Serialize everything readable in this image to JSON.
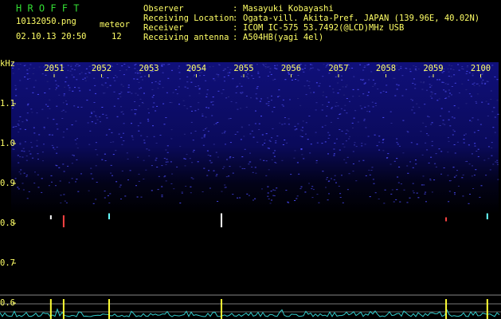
{
  "chart_data": {
    "type": "spectrogram",
    "title": "H R O F F T",
    "file": "10132050.png",
    "date": "02.10.13 20:50",
    "meteor_label": "meteor",
    "meteor_count": 12,
    "info": [
      {
        "label": "Observer",
        "value": "Masayuki Kobayashi"
      },
      {
        "label": "Receiving Location",
        "value": "Ogata-vill. Akita-Pref. JAPAN (139.96E, 40.02N)"
      },
      {
        "label": "Receiver",
        "value": "ICOM IC-575 53.7492(@LCD)MHz USB"
      },
      {
        "label": "Receiving antenna",
        "value": "A504HB(yagi 4el)"
      }
    ],
    "separator": ":",
    "y_label": "kHz",
    "categories": [
      "2051",
      "2052",
      "2053",
      "2054",
      "2055",
      "2056",
      "2057",
      "2058",
      "2059",
      "2100"
    ],
    "ylim": [
      0.56,
      1.2
    ],
    "yticks": [
      0.6,
      0.7,
      0.8,
      0.9,
      {
        "value": 1,
        "label": "1.0"
      },
      1.1
    ],
    "echoes": [
      {
        "x": 0.93,
        "low": 0.81,
        "high": 0.82
      },
      {
        "x": 1.2,
        "low": 0.79,
        "high": 0.82
      },
      {
        "x": 2.16,
        "low": 0.81,
        "high": 0.825
      },
      {
        "x": 4.53,
        "low": 0.79,
        "high": 0.825
      },
      {
        "x": 9.27,
        "low": 0.805,
        "high": 0.815
      },
      {
        "x": 10.14,
        "low": 0.81,
        "high": 0.825
      }
    ]
  }
}
